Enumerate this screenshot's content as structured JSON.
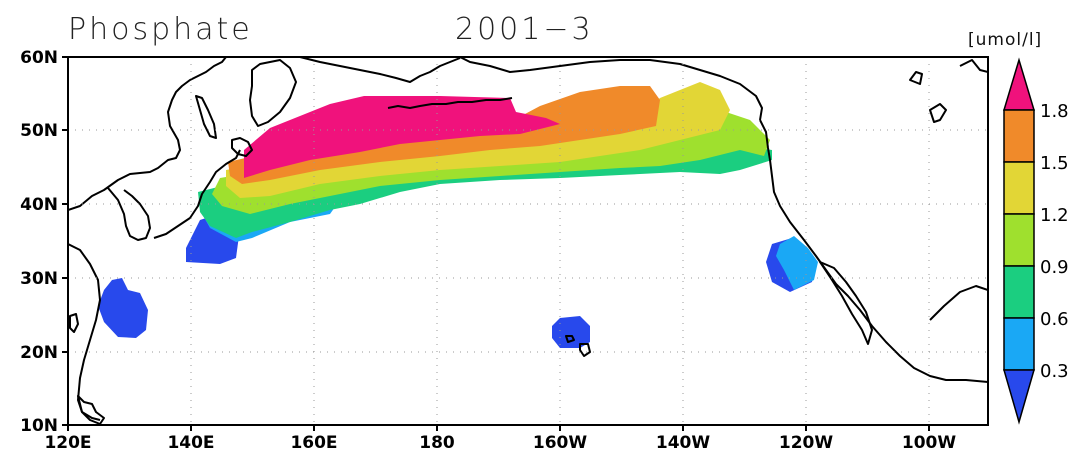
{
  "title": "Phosphate",
  "period": "2001−3",
  "units": "[umol/l]",
  "axes": {
    "lon_ticks": [
      "120E",
      "140E",
      "160E",
      "180",
      "160W",
      "140W",
      "120W",
      "100W"
    ],
    "lat_ticks": [
      "60N",
      "50N",
      "40N",
      "30N",
      "20N",
      "10N"
    ]
  },
  "colorbar": {
    "labels": [
      "1.8",
      "1.5",
      "1.2",
      "0.9",
      "0.6",
      "0.3"
    ],
    "colors": [
      "#f0127c",
      "#f08a2a",
      "#e2d636",
      "#9fe02e",
      "#1bce80",
      "#1aa8f5",
      "#2849ec"
    ]
  }
}
